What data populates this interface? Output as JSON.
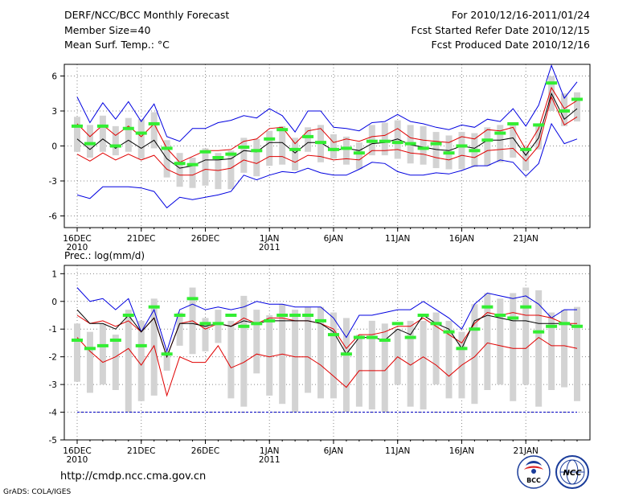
{
  "header": {
    "title": "DERF/NCC/BCC Monthly Forecast",
    "member_size": "Member Size=40",
    "variable": "Mean Surf. Temp.: °C",
    "period": "For 2010/12/16-2011/01/24",
    "fcst_started": "Fcst Started Refer Date 2010/12/15",
    "fcst_produced": "Fcst Produced Date 2010/12/16"
  },
  "footer": {
    "url": "http://cmdp.ncc.cma.gov.cn",
    "grads_credit": "GrADS: COLA/IGES",
    "bcc_logo_text": "BCC",
    "ncc_logo_text": "NCC"
  },
  "colors": {
    "max_min_line": "#0000e0",
    "spread_line": "#e00000",
    "mean_line": "#000000",
    "box": "#d3d3d3",
    "marker": "#33ee33",
    "floor_line": "#0000c0",
    "grid": "#888888"
  },
  "chart_data": [
    {
      "type": "box-line",
      "title": "Mean Surf. Temp.: °C",
      "ylim": [
        -7,
        7
      ],
      "yticks": [
        "6",
        "3",
        "0",
        "-3",
        "-6"
      ],
      "ytick_values": [
        6,
        3,
        0,
        -3,
        -6
      ],
      "x_tick_days": [
        1,
        6,
        11,
        16,
        21,
        26,
        31,
        36
      ],
      "x_tick_labels": [
        "16DEC",
        "21DEC",
        "26DEC",
        "1JAN",
        "6JAN",
        "11JAN",
        "16JAN",
        "21JAN"
      ],
      "x_year_labels": [
        "2010",
        "",
        "",
        "2011",
        "",
        "",
        "",
        ""
      ],
      "days": 40,
      "box_top": [
        2.5,
        1.8,
        2.6,
        1.7,
        2.4,
        2.3,
        2.9,
        0.5,
        -0.6,
        -1.0,
        -0.2,
        -0.6,
        -0.4,
        0.7,
        0.6,
        1.3,
        1.7,
        0.7,
        1.6,
        1.8,
        1.0,
        0.8,
        0.3,
        1.8,
        2.0,
        2.2,
        1.8,
        1.7,
        1.2,
        0.9,
        1.2,
        1.1,
        1.6,
        1.8,
        2.0,
        0.0,
        1.8,
        6.0,
        4.5,
        4.6
      ],
      "box_bottom": [
        -0.5,
        -1.0,
        -0.5,
        -0.8,
        -0.5,
        -1.1,
        -0.2,
        -2.7,
        -3.5,
        -3.6,
        -3.4,
        -3.7,
        -3.7,
        -2.3,
        -2.6,
        -1.7,
        -1.6,
        -2.1,
        -0.5,
        -1.4,
        -1.1,
        -1.6,
        -2.0,
        -0.8,
        -0.8,
        -1.1,
        -1.5,
        -1.6,
        -1.9,
        -2.0,
        -2.0,
        -1.8,
        -1.7,
        -1.4,
        -1.0,
        -2.1,
        -0.3,
        3.0,
        1.7,
        2.1
      ],
      "maximum": [
        4.2,
        2.0,
        3.7,
        2.3,
        3.8,
        2.1,
        3.6,
        0.8,
        0.4,
        1.5,
        1.5,
        2.0,
        2.2,
        2.6,
        2.4,
        3.2,
        2.6,
        1.2,
        3.0,
        3.0,
        1.6,
        1.5,
        1.3,
        2.0,
        2.1,
        2.7,
        2.1,
        1.9,
        1.6,
        1.4,
        1.8,
        1.6,
        2.3,
        2.1,
        3.2,
        1.7,
        3.5,
        6.9,
        4.1,
        5.5
      ],
      "minimum": [
        -4.2,
        -4.5,
        -3.5,
        -3.5,
        -3.5,
        -3.6,
        -3.9,
        -5.3,
        -4.4,
        -4.6,
        -4.4,
        -4.2,
        -3.9,
        -2.5,
        -2.9,
        -2.5,
        -2.2,
        -2.3,
        -1.9,
        -2.3,
        -2.5,
        -2.5,
        -2.0,
        -1.4,
        -1.5,
        -2.2,
        -2.5,
        -2.5,
        -2.3,
        -2.4,
        -2.1,
        -1.7,
        -1.7,
        -1.2,
        -1.4,
        -2.6,
        -1.5,
        1.9,
        0.2,
        0.6
      ],
      "upper": [
        1.9,
        0.8,
        1.8,
        0.9,
        1.7,
        0.8,
        1.9,
        -0.2,
        -1.4,
        -0.9,
        -0.4,
        -0.4,
        -0.3,
        0.4,
        0.6,
        1.5,
        1.6,
        0.2,
        1.3,
        1.5,
        0.3,
        0.6,
        0.4,
        0.8,
        0.9,
        1.5,
        0.7,
        0.5,
        0.4,
        0.3,
        0.8,
        0.6,
        1.4,
        1.3,
        1.6,
        -0.3,
        1.5,
        5.0,
        3.2,
        3.9
      ],
      "lower": [
        -0.7,
        -1.3,
        -0.6,
        -1.2,
        -0.7,
        -1.2,
        -0.8,
        -2.0,
        -2.5,
        -2.5,
        -2.0,
        -2.1,
        -1.9,
        -1.2,
        -1.5,
        -0.9,
        -0.9,
        -1.4,
        -0.8,
        -0.9,
        -1.2,
        -1.1,
        -1.2,
        -0.4,
        -0.4,
        -0.3,
        -0.6,
        -0.7,
        -1.0,
        -1.2,
        -0.8,
        -1.0,
        -0.4,
        -0.3,
        -0.2,
        -1.3,
        0.0,
        4.2,
        1.8,
        2.5
      ],
      "mean": [
        0.6,
        -0.3,
        0.6,
        -0.2,
        0.5,
        -0.2,
        0.5,
        -1.1,
        -1.9,
        -1.7,
        -1.2,
        -1.2,
        -1.1,
        -0.4,
        -0.5,
        0.3,
        0.3,
        -0.6,
        0.3,
        0.3,
        -0.4,
        -0.2,
        -0.4,
        0.2,
        0.3,
        0.6,
        0.1,
        -0.1,
        -0.3,
        -0.4,
        0.0,
        -0.2,
        0.5,
        0.5,
        0.7,
        -0.8,
        0.7,
        4.5,
        2.3,
        3.2
      ],
      "marker": [
        1.7,
        0.2,
        1.7,
        0.0,
        1.5,
        1.1,
        1.9,
        -0.2,
        -1.5,
        -1.6,
        -0.5,
        -1.0,
        -0.7,
        -0.1,
        -0.4,
        0.6,
        1.4,
        -0.3,
        0.8,
        0.3,
        -0.3,
        -0.2,
        -0.6,
        0.4,
        0.4,
        0.3,
        0.2,
        -0.2,
        0.2,
        -0.6,
        0.0,
        -0.4,
        0.5,
        1.1,
        1.9,
        -0.3,
        1.8,
        5.4,
        3.0,
        4.0
      ]
    },
    {
      "type": "box-line",
      "title": "Prec.: log(mm/d)",
      "ylim": [
        -5,
        1.3
      ],
      "yticks": [
        "1",
        "0",
        "-1",
        "-2",
        "-3",
        "-4",
        "-5"
      ],
      "ytick_values": [
        1,
        0,
        -1,
        -2,
        -3,
        -4,
        -5
      ],
      "x_tick_days": [
        1,
        6,
        11,
        16,
        21,
        26,
        31,
        36
      ],
      "x_tick_labels": [
        "16DEC",
        "21DEC",
        "26DEC",
        "1JAN",
        "6JAN",
        "11JAN",
        "16JAN",
        "21JAN"
      ],
      "x_year_labels": [
        "2010",
        "",
        "",
        "2011",
        "",
        "",
        "",
        ""
      ],
      "days": 40,
      "floor_value": -4,
      "box_top": [
        -0.8,
        -1.1,
        -0.8,
        -1.2,
        -0.3,
        -0.7,
        0.1,
        -1.8,
        -0.4,
        0.5,
        -0.6,
        -0.3,
        -0.7,
        0.2,
        -0.3,
        -0.5,
        -0.1,
        -0.3,
        -0.2,
        -0.2,
        -0.4,
        -0.6,
        -1.2,
        -0.7,
        -0.8,
        -1.0,
        -0.7,
        -0.7,
        -0.4,
        -0.7,
        -1.1,
        -0.1,
        0.3,
        0.1,
        0.3,
        0.5,
        0.4,
        -0.4,
        -0.3,
        -0.2
      ],
      "box_bottom": [
        -2.9,
        -3.3,
        -3.0,
        -3.2,
        -4.0,
        -3.6,
        -3.4,
        -2.5,
        -1.6,
        -1.9,
        -1.8,
        -1.5,
        -3.5,
        -3.8,
        -2.6,
        -3.4,
        -3.7,
        -4.0,
        -3.3,
        -3.5,
        -3.5,
        -4.0,
        -3.8,
        -3.9,
        -4.0,
        -3.0,
        -3.8,
        -3.9,
        -3.0,
        -3.5,
        -3.5,
        -3.7,
        -3.2,
        -3.0,
        -3.6,
        -3.0,
        -3.8,
        -3.2,
        -3.1,
        -3.6
      ],
      "maximum": [
        0.5,
        0.0,
        0.1,
        -0.3,
        0.1,
        -1.1,
        -0.3,
        -1.8,
        -0.3,
        -0.1,
        -0.3,
        -0.2,
        -0.3,
        -0.2,
        0.0,
        -0.1,
        -0.1,
        -0.2,
        -0.2,
        -0.2,
        -0.6,
        -1.3,
        -0.5,
        -0.5,
        -0.4,
        -0.3,
        -0.3,
        0.0,
        -0.3,
        -0.6,
        -1.0,
        -0.1,
        0.3,
        0.2,
        0.1,
        0.2,
        -0.1,
        -0.6,
        -0.3,
        -0.3
      ],
      "minimum": [
        -4,
        -4,
        -4,
        -4,
        -4,
        -4,
        -4,
        -4,
        -4,
        -4,
        -4,
        -4,
        -4,
        -4,
        -4,
        -4,
        -4,
        -4,
        -4,
        -4,
        -4,
        -4,
        -4,
        -4,
        -4,
        -4,
        -4,
        -4,
        -4,
        -4,
        -4,
        -4,
        -4,
        -4,
        -4,
        -4,
        -4,
        -4,
        -4,
        -4
      ],
      "upper": [
        -0.5,
        -0.8,
        -0.7,
        -0.9,
        -0.7,
        -1.1,
        -0.6,
        -2.0,
        -0.8,
        -0.7,
        -1.0,
        -0.8,
        -0.9,
        -0.6,
        -0.8,
        -0.6,
        -0.6,
        -0.7,
        -0.7,
        -0.8,
        -1.0,
        -1.7,
        -1.2,
        -1.2,
        -1.1,
        -0.9,
        -0.9,
        -0.6,
        -0.9,
        -1.2,
        -1.5,
        -0.8,
        -0.4,
        -0.5,
        -0.4,
        -0.5,
        -0.5,
        -0.6,
        -0.8,
        -0.8
      ],
      "lower": [
        -1.3,
        -1.8,
        -2.2,
        -2.0,
        -1.7,
        -2.3,
        -1.6,
        -3.4,
        -2.0,
        -2.2,
        -2.2,
        -1.6,
        -2.4,
        -2.2,
        -1.9,
        -2.0,
        -1.9,
        -2.0,
        -2.0,
        -2.3,
        -2.7,
        -3.1,
        -2.5,
        -2.5,
        -2.5,
        -2.0,
        -2.3,
        -2.0,
        -2.3,
        -2.7,
        -2.3,
        -2.0,
        -1.5,
        -1.6,
        -1.7,
        -1.7,
        -1.3,
        -1.6,
        -1.6,
        -1.7
      ],
      "mean": [
        -0.3,
        -0.8,
        -0.8,
        -1.0,
        -0.5,
        -1.1,
        -0.6,
        -2.0,
        -0.8,
        -0.8,
        -0.9,
        -0.8,
        -0.9,
        -0.7,
        -0.8,
        -0.7,
        -0.7,
        -0.7,
        -0.7,
        -0.8,
        -1.1,
        -1.9,
        -1.3,
        -1.3,
        -1.4,
        -1.0,
        -1.2,
        -0.5,
        -0.8,
        -1.0,
        -1.7,
        -0.7,
        -0.5,
        -0.6,
        -0.7,
        -0.7,
        -0.8,
        -0.8,
        -0.8,
        -0.9
      ],
      "marker": [
        -1.4,
        -1.7,
        -1.6,
        -1.4,
        -0.5,
        -1.6,
        -0.2,
        -1.9,
        -0.5,
        0.1,
        -0.8,
        -0.8,
        -0.5,
        -0.9,
        -0.8,
        -0.7,
        -0.5,
        -0.5,
        -0.5,
        -0.7,
        -1.2,
        -1.9,
        -1.3,
        -1.3,
        -1.4,
        -0.8,
        -1.3,
        -0.5,
        -0.8,
        -1.1,
        -1.7,
        -1.0,
        -0.2,
        -0.5,
        -0.6,
        -0.2,
        -1.1,
        -0.9,
        -0.8,
        -0.9
      ]
    }
  ]
}
